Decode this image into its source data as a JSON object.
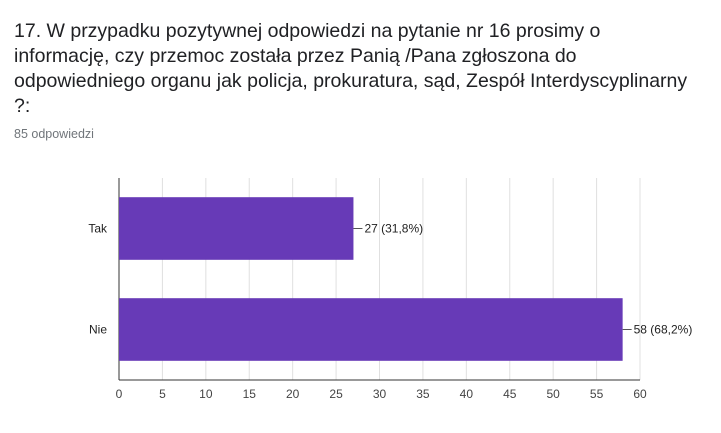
{
  "question": {
    "line1": "17. W przypadku pozytywnej odpowiedzi na pytanie nr 16 prosimy o",
    "line2": "informację, czy przemoc została przez Panią /Pana zgłoszona do",
    "line3": "odpowiedniego organu jak policja, prokuratura, sąd, Zespół Interdyscyplinarny",
    "line4": "?:"
  },
  "response_count": "85 odpowiedzi",
  "chart_data": {
    "type": "bar",
    "orientation": "horizontal",
    "categories": [
      "Tak",
      "Nie"
    ],
    "values": [
      27,
      58
    ],
    "data_labels": [
      "27 (31,8%)",
      "58 (68,2%)"
    ],
    "xlim": [
      0,
      60
    ],
    "x_ticks": [
      "0",
      "5",
      "10",
      "15",
      "20",
      "25",
      "30",
      "35",
      "40",
      "45",
      "50",
      "55",
      "60"
    ],
    "grid": true,
    "bar_color": "#673ab7"
  }
}
